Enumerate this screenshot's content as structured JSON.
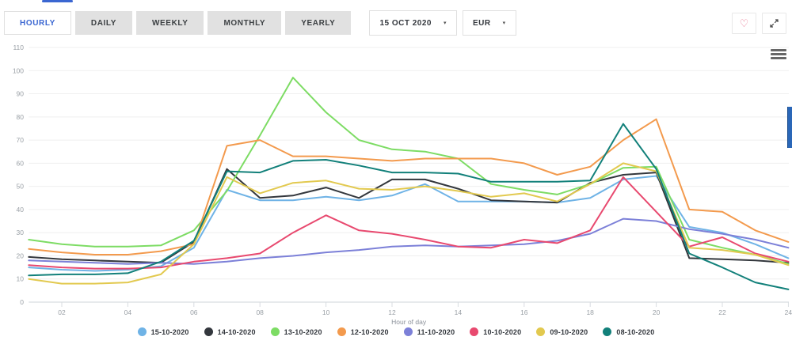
{
  "page": {
    "accent_color": "#3a66d1"
  },
  "toolbar": {
    "tabs": [
      {
        "label": "HOURLY",
        "active": true
      },
      {
        "label": "DAILY",
        "active": false
      },
      {
        "label": "WEEKLY",
        "active": false
      },
      {
        "label": "MONTHLY",
        "active": false
      },
      {
        "label": "YEARLY",
        "active": false
      }
    ],
    "date_select": {
      "value": "15 OCT 2020",
      "caret": "▾"
    },
    "currency_select": {
      "value": "EUR",
      "caret": "▾"
    },
    "icons": {
      "favorite": "heart-outline",
      "fullscreen": "expand-diagonal-arrows"
    }
  },
  "chart_menu_icon": "hamburger-menu",
  "chart_data": {
    "type": "line",
    "xlabel": "Hour of day",
    "x_hours": [
      1,
      2,
      3,
      4,
      5,
      6,
      7,
      8,
      9,
      10,
      11,
      12,
      13,
      14,
      15,
      16,
      17,
      18,
      19,
      20,
      21,
      22,
      23,
      24
    ],
    "x_tick_hours": [
      2,
      4,
      6,
      8,
      10,
      12,
      14,
      16,
      18,
      20,
      22,
      24
    ],
    "x_tick_labels": [
      "02",
      "04",
      "06",
      "08",
      "10",
      "12",
      "14",
      "16",
      "18",
      "20",
      "22",
      "24"
    ],
    "y_ticks": [
      0,
      10,
      20,
      30,
      40,
      50,
      60,
      70,
      80,
      90,
      100,
      110
    ],
    "ylim": [
      0,
      110
    ],
    "grid": true,
    "legend_position": "bottom",
    "series": [
      {
        "name": "15-10-2020",
        "color": "#6fb3e6",
        "values": [
          15,
          14,
          13.5,
          14,
          15.5,
          23.5,
          48.5,
          44,
          44,
          45.5,
          44,
          46,
          51,
          43.5,
          43.5,
          43.5,
          43,
          45,
          53,
          54.5,
          32.5,
          30,
          25,
          19
        ]
      },
      {
        "name": "14-10-2020",
        "color": "#33373d",
        "values": [
          19.5,
          18.5,
          18,
          17.5,
          17,
          26,
          57.5,
          45,
          46,
          49.5,
          45,
          53,
          53,
          49,
          44,
          43.5,
          43,
          51.5,
          55,
          56,
          19,
          18.5,
          18,
          17
        ]
      },
      {
        "name": "13-10-2020",
        "color": "#7ddc64",
        "values": [
          27,
          25,
          24,
          24,
          24.5,
          31,
          48,
          72,
          97,
          82,
          70,
          66,
          65,
          62,
          51,
          48.5,
          46.5,
          51,
          58,
          58.5,
          27,
          23.5,
          20.5,
          16.5
        ]
      },
      {
        "name": "12-10-2020",
        "color": "#f39a4d",
        "values": [
          23,
          21.5,
          20.5,
          20.5,
          22,
          25,
          67.5,
          70,
          63,
          63,
          62,
          61,
          62,
          62,
          62,
          60,
          55,
          58.5,
          70,
          79,
          40,
          39,
          31,
          26
        ]
      },
      {
        "name": "11-10-2020",
        "color": "#7c80d8",
        "values": [
          18,
          17.5,
          17,
          16.5,
          17,
          16.5,
          17.5,
          19,
          20,
          21.5,
          22.5,
          24,
          24.5,
          24,
          24.5,
          25,
          26.5,
          29.5,
          36,
          35,
          31.5,
          29.5,
          27,
          23.5
        ]
      },
      {
        "name": "10-10-2020",
        "color": "#e8496f",
        "values": [
          16,
          15,
          14.5,
          14.5,
          15,
          17.5,
          19,
          21,
          30,
          37.5,
          31,
          29.5,
          27,
          24,
          23.5,
          27,
          25.5,
          31,
          54,
          39,
          24,
          28,
          21,
          17.5
        ]
      },
      {
        "name": "09-10-2020",
        "color": "#e2c94f",
        "values": [
          10,
          8,
          8,
          8.5,
          12,
          25,
          54,
          47,
          51.5,
          52.5,
          49,
          48.5,
          50,
          48,
          45.5,
          47,
          43.5,
          51,
          60,
          56.5,
          23.5,
          22.5,
          20.5,
          16
        ]
      },
      {
        "name": "08-10-2020",
        "color": "#12807a",
        "values": [
          11.5,
          12,
          12,
          12.5,
          17.5,
          26.5,
          56.5,
          56,
          61,
          61.5,
          59,
          56,
          56,
          55.5,
          52,
          52,
          52,
          52.5,
          77,
          57.5,
          21,
          15,
          8.5,
          5.5
        ]
      }
    ]
  }
}
